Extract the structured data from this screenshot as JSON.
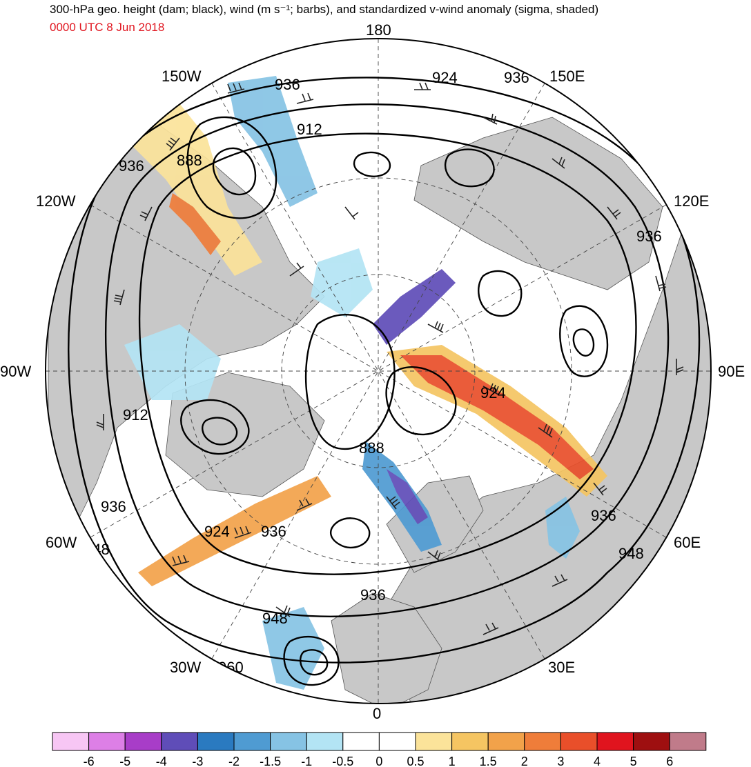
{
  "header": {
    "title": "300-hPa geo. height (dam; black), wind (m s⁻¹; barbs), and standardized v-wind anomaly (sigma, shaded)",
    "valid_time": "0000 UTC 8 Jun 2018"
  },
  "longitude_labels": {
    "n180": "180",
    "e150": "150E",
    "e120": "120E",
    "e90": "90E",
    "e60": "60E",
    "e30": "30E",
    "zero": "0",
    "w30": "30W",
    "w60": "60W",
    "w90": "90W",
    "w120": "120W",
    "w150": "150W"
  },
  "contour_labels": {
    "c1": "936",
    "c2": "924",
    "c3": "936",
    "c4": "912",
    "c5": "888",
    "c6": "936",
    "c7": "936",
    "c8": "924",
    "c9": "912",
    "c10": "888",
    "c11": "936",
    "c12": "924",
    "c13": "936",
    "c14": "948",
    "c15": "936",
    "c16": "948",
    "c17": "948",
    "c18": "960"
  },
  "colorbar": {
    "labels": [
      "-6",
      "-5",
      "-4",
      "-3",
      "-2",
      "-1.5",
      "-1",
      "-0.5",
      "0",
      "0.5",
      "1",
      "1.5",
      "2",
      "3",
      "4",
      "5",
      "6"
    ],
    "colors": [
      "#f7c6f4",
      "#dd7fe6",
      "#a83dc8",
      "#5f4db8",
      "#2a7ac0",
      "#4f9bd2",
      "#86c3e4",
      "#b3e4f4",
      "#ffffff",
      "#ffffff",
      "#fbe39a",
      "#f5c562",
      "#f2a24a",
      "#ef7d3a",
      "#e94f2a",
      "#e0141e",
      "#9e0f10",
      "#c07b8a"
    ]
  },
  "colors": {
    "land": "#c8c8c8",
    "neg_light": "#b3e4f4",
    "neg_mid": "#86c3e4",
    "neg_strong": "#2a7ac0",
    "neg_max": "#5f4db8",
    "pos_light": "#fbe39a",
    "pos_mid": "#f5c562",
    "pos_strong": "#ef7d3a",
    "pos_max": "#e0141e"
  }
}
